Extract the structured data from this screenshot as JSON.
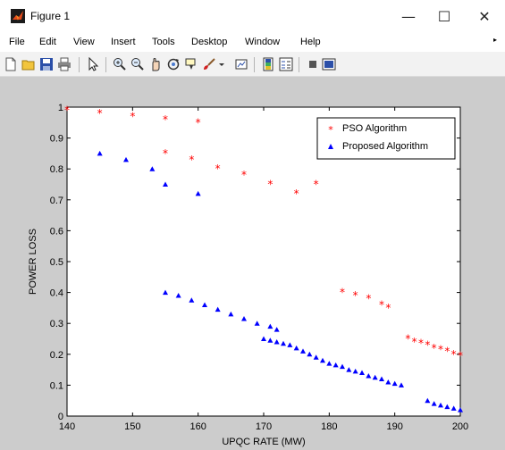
{
  "window": {
    "title": "Figure 1",
    "minimize_glyph": "—",
    "maximize_glyph": "☐",
    "close_glyph": "✕"
  },
  "menu": {
    "items": [
      "File",
      "Edit",
      "View",
      "Insert",
      "Tools",
      "Desktop",
      "Window",
      "Help"
    ],
    "overflow_glyph": "▸"
  },
  "toolbar": {
    "icons": [
      "new-figure-icon",
      "open-file-icon",
      "save-icon",
      "print-icon",
      "pointer-icon",
      "zoom-in-icon",
      "zoom-out-icon",
      "pan-icon",
      "rotate-icon",
      "data-cursor-icon",
      "brush-icon",
      "link-icon",
      "colorbar-icon",
      "legend-icon",
      "hide-plot-tools-icon",
      "show-plot-tools-icon"
    ]
  },
  "colors": {
    "figure_background": "#cccccc",
    "pso_series": "#ff0000",
    "proposed_series": "#0000ff"
  },
  "chart_data": {
    "type": "scatter",
    "xlabel": "UPQC RATE (MW)",
    "ylabel": "POWER LOSS",
    "xlim": [
      140,
      200
    ],
    "ylim": [
      0,
      1
    ],
    "xticks": [
      "140",
      "150",
      "160",
      "170",
      "180",
      "190",
      "200"
    ],
    "yticks": [
      "0",
      "0.1",
      "0.2",
      "0.3",
      "0.4",
      "0.5",
      "0.6",
      "0.7",
      "0.8",
      "0.9",
      "1"
    ],
    "grid": false,
    "legend_position": "top-right",
    "series": [
      {
        "name": "PSO Algorithm",
        "marker": "star",
        "color": "#ff0000",
        "points": [
          [
            140,
            0.99
          ],
          [
            145,
            0.98
          ],
          [
            150,
            0.97
          ],
          [
            155,
            0.96
          ],
          [
            160,
            0.95
          ],
          [
            155,
            0.85
          ],
          [
            159,
            0.83
          ],
          [
            163,
            0.8
          ],
          [
            167,
            0.78
          ],
          [
            171,
            0.75
          ],
          [
            175,
            0.72
          ],
          [
            178,
            0.75
          ],
          [
            182,
            0.4
          ],
          [
            184,
            0.39
          ],
          [
            186,
            0.38
          ],
          [
            188,
            0.36
          ],
          [
            189,
            0.35
          ],
          [
            192,
            0.25
          ],
          [
            193,
            0.24
          ],
          [
            194,
            0.235
          ],
          [
            195,
            0.23
          ],
          [
            196,
            0.22
          ],
          [
            197,
            0.215
          ],
          [
            198,
            0.21
          ],
          [
            199,
            0.2
          ],
          [
            200,
            0.195
          ]
        ]
      },
      {
        "name": "Proposed Algorithm",
        "marker": "triangle",
        "color": "#0000ff",
        "points": [
          [
            145,
            0.85
          ],
          [
            149,
            0.83
          ],
          [
            153,
            0.8
          ],
          [
            155,
            0.75
          ],
          [
            160,
            0.72
          ],
          [
            155,
            0.4
          ],
          [
            157,
            0.39
          ],
          [
            159,
            0.375
          ],
          [
            161,
            0.36
          ],
          [
            163,
            0.345
          ],
          [
            165,
            0.33
          ],
          [
            167,
            0.315
          ],
          [
            169,
            0.3
          ],
          [
            171,
            0.29
          ],
          [
            172,
            0.28
          ],
          [
            170,
            0.25
          ],
          [
            171,
            0.245
          ],
          [
            172,
            0.24
          ],
          [
            173,
            0.235
          ],
          [
            174,
            0.23
          ],
          [
            175,
            0.22
          ],
          [
            176,
            0.21
          ],
          [
            177,
            0.2
          ],
          [
            178,
            0.19
          ],
          [
            179,
            0.18
          ],
          [
            180,
            0.17
          ],
          [
            181,
            0.165
          ],
          [
            182,
            0.16
          ],
          [
            183,
            0.15
          ],
          [
            184,
            0.145
          ],
          [
            185,
            0.14
          ],
          [
            186,
            0.13
          ],
          [
            187,
            0.125
          ],
          [
            188,
            0.12
          ],
          [
            189,
            0.11
          ],
          [
            190,
            0.105
          ],
          [
            191,
            0.1
          ],
          [
            195,
            0.05
          ],
          [
            196,
            0.04
          ],
          [
            197,
            0.035
          ],
          [
            198,
            0.03
          ],
          [
            199,
            0.025
          ],
          [
            200,
            0.02
          ]
        ]
      }
    ]
  }
}
